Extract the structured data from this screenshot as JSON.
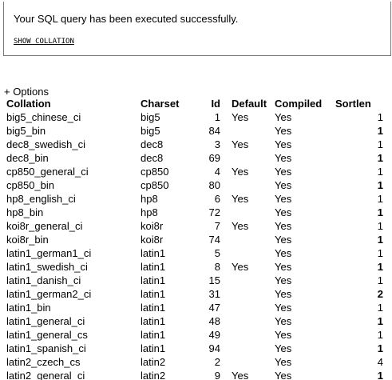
{
  "message": {
    "success": "Your SQL query has been executed successfully.",
    "query": "SHOW COLLATION"
  },
  "options_label": "+ Options",
  "table": {
    "columns": [
      "Collation",
      "Charset",
      "Id",
      "Default",
      "Compiled",
      "Sortlen"
    ],
    "rows": [
      [
        "big5_chinese_ci",
        "big5",
        "1",
        "Yes",
        "Yes",
        "1"
      ],
      [
        "big5_bin",
        "big5",
        "84",
        "",
        "Yes",
        "1"
      ],
      [
        "dec8_swedish_ci",
        "dec8",
        "3",
        "Yes",
        "Yes",
        "1"
      ],
      [
        "dec8_bin",
        "dec8",
        "69",
        "",
        "Yes",
        "1"
      ],
      [
        "cp850_general_ci",
        "cp850",
        "4",
        "Yes",
        "Yes",
        "1"
      ],
      [
        "cp850_bin",
        "cp850",
        "80",
        "",
        "Yes",
        "1"
      ],
      [
        "hp8_english_ci",
        "hp8",
        "6",
        "Yes",
        "Yes",
        "1"
      ],
      [
        "hp8_bin",
        "hp8",
        "72",
        "",
        "Yes",
        "1"
      ],
      [
        "koi8r_general_ci",
        "koi8r",
        "7",
        "Yes",
        "Yes",
        "1"
      ],
      [
        "koi8r_bin",
        "koi8r",
        "74",
        "",
        "Yes",
        "1"
      ],
      [
        "latin1_german1_ci",
        "latin1",
        "5",
        "",
        "Yes",
        "1"
      ],
      [
        "latin1_swedish_ci",
        "latin1",
        "8",
        "Yes",
        "Yes",
        "1"
      ],
      [
        "latin1_danish_ci",
        "latin1",
        "15",
        "",
        "Yes",
        "1"
      ],
      [
        "latin1_german2_ci",
        "latin1",
        "31",
        "",
        "Yes",
        "2"
      ],
      [
        "latin1_bin",
        "latin1",
        "47",
        "",
        "Yes",
        "1"
      ],
      [
        "latin1_general_ci",
        "latin1",
        "48",
        "",
        "Yes",
        "1"
      ],
      [
        "latin1_general_cs",
        "latin1",
        "49",
        "",
        "Yes",
        "1"
      ],
      [
        "latin1_spanish_ci",
        "latin1",
        "94",
        "",
        "Yes",
        "1"
      ],
      [
        "latin2_czech_cs",
        "latin2",
        "2",
        "",
        "Yes",
        "4"
      ],
      [
        "latin2_general_ci",
        "latin2",
        "9",
        "Yes",
        "Yes",
        "1"
      ]
    ]
  }
}
